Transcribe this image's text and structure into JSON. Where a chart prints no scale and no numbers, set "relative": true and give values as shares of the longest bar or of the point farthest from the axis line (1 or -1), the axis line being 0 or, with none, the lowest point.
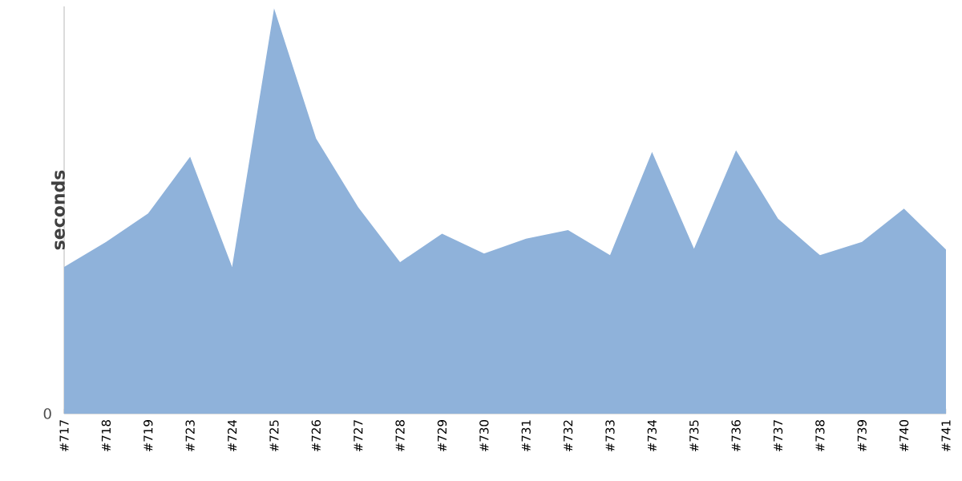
{
  "chart_data": {
    "type": "area",
    "ylabel": "seconds",
    "relative": true,
    "color": "#8fb2da",
    "categories": [
      "#717",
      "#718",
      "#719",
      "#723",
      "#724",
      "#725",
      "#726",
      "#727",
      "#728",
      "#729",
      "#730",
      "#731",
      "#732",
      "#733",
      "#734",
      "#735",
      "#736",
      "#737",
      "#738",
      "#739",
      "#740",
      "#741"
    ],
    "values": [
      0.362,
      0.424,
      0.494,
      0.634,
      0.362,
      1,
      0.679,
      0.51,
      0.374,
      0.444,
      0.395,
      0.432,
      0.453,
      0.391,
      0.646,
      0.407,
      0.65,
      0.481,
      0.391,
      0.424,
      0.506,
      0.405
    ],
    "annotations": [
      "0"
    ]
  }
}
